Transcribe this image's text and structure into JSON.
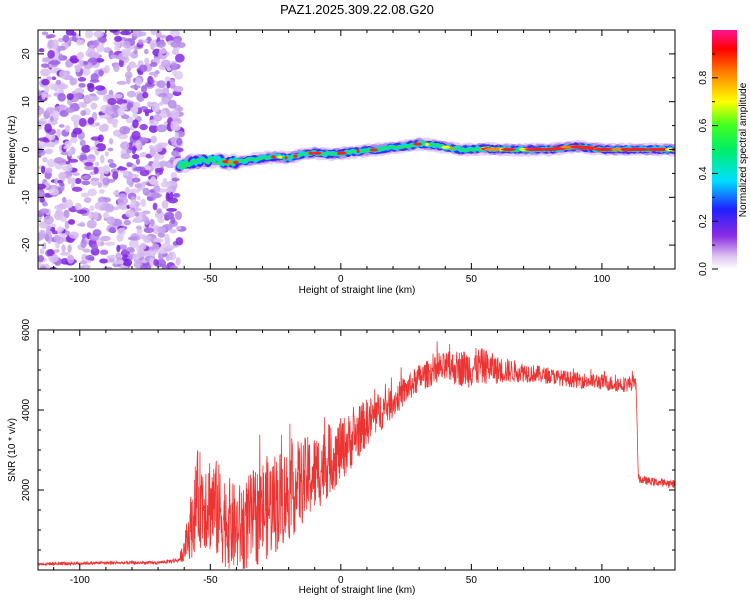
{
  "title": "PAZ1.2025.309.22.08.G20",
  "chart_data": [
    {
      "type": "heatmap",
      "xlabel": "Height of straight line (km)",
      "ylabel": "Frequency (Hz)",
      "xlim": [
        -116,
        128
      ],
      "ylim": [
        -25,
        25
      ],
      "xticks": [
        -100,
        -50,
        0,
        50,
        100
      ],
      "xtick_labels": [
        "-100",
        "-50",
        "0",
        "50",
        "100"
      ],
      "yticks": [
        -20,
        -10,
        0,
        10,
        20
      ],
      "ytick_labels": [
        "-20",
        "-10",
        "0",
        "10",
        "20"
      ],
      "noise_region_end_km": -61,
      "ridge": {
        "x": [
          -62,
          -58,
          -55,
          -50,
          -45,
          -40,
          -35,
          -30,
          -25,
          -20,
          -15,
          -10,
          -5,
          0,
          5,
          10,
          15,
          20,
          25,
          30,
          35,
          40,
          45,
          50,
          55,
          60,
          70,
          80,
          90,
          100,
          110,
          120,
          128
        ],
        "freq": [
          -3.5,
          -2.8,
          -2.5,
          -2.3,
          -2.5,
          -2.7,
          -2.2,
          -1.8,
          -1.5,
          -1.8,
          -1.0,
          -0.7,
          -1.0,
          -0.8,
          -0.5,
          -0.2,
          0.0,
          0.4,
          0.7,
          1.2,
          1.0,
          0.5,
          0.0,
          0.0,
          0.2,
          0.0,
          0.0,
          0.0,
          0.6,
          0.0,
          0.0,
          0.0,
          0.0
        ]
      },
      "colorbar": {
        "label": "Normalized spectral amplitude",
        "ticks": [
          0.0,
          0.2,
          0.4,
          0.6,
          0.8
        ],
        "tick_labels": [
          "0.0",
          "0.2",
          "0.4",
          "0.6",
          "0.8"
        ],
        "range": [
          0,
          1
        ]
      }
    },
    {
      "type": "line",
      "xlabel": "Height of straight line (km)",
      "ylabel": "SNR (10 * v/v)",
      "xlim": [
        -116,
        128
      ],
      "ylim": [
        0,
        6000
      ],
      "xticks": [
        -100,
        -50,
        0,
        50,
        100
      ],
      "xtick_labels": [
        "-100",
        "-50",
        "0",
        "50",
        "100"
      ],
      "yticks": [
        2000,
        4000,
        6000
      ],
      "ytick_labels": [
        "2000",
        "4000",
        "6000"
      ],
      "color": "#ee3333",
      "series": [
        {
          "name": "SNR",
          "x": [
            -116,
            -90,
            -70,
            -62,
            -60,
            -57,
            -55,
            -50,
            -45,
            -40,
            -35,
            -30,
            -25,
            -20,
            -15,
            -10,
            -5,
            0,
            5,
            10,
            15,
            20,
            25,
            30,
            35,
            40,
            45,
            50,
            55,
            60,
            70,
            80,
            90,
            100,
            105,
            110,
            113,
            114,
            115,
            120,
            128
          ],
          "values": [
            150,
            180,
            180,
            250,
            500,
            1200,
            1800,
            1700,
            1300,
            1000,
            1200,
            1500,
            1700,
            1900,
            2200,
            2400,
            2700,
            3000,
            3300,
            3700,
            3950,
            4200,
            4500,
            4800,
            4950,
            5050,
            5050,
            5050,
            5100,
            5000,
            4950,
            4850,
            4750,
            4700,
            4650,
            4650,
            4700,
            2300,
            2250,
            2200,
            2150
          ],
          "noise": [
            40,
            40,
            40,
            60,
            300,
            900,
            1200,
            1300,
            1200,
            1100,
            1200,
            1300,
            1300,
            1200,
            1100,
            1000,
            900,
            800,
            700,
            600,
            500,
            400,
            350,
            350,
            350,
            400,
            450,
            500,
            450,
            350,
            250,
            200,
            200,
            200,
            200,
            200,
            200,
            100,
            100,
            100,
            100
          ]
        }
      ]
    }
  ]
}
